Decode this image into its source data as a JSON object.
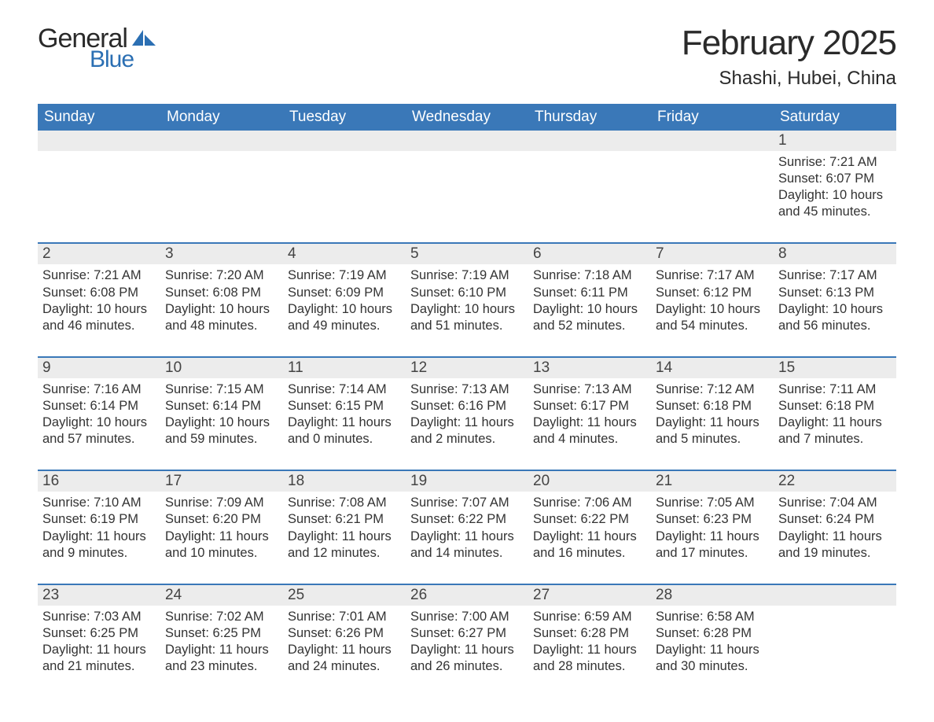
{
  "logo": {
    "text_general": "General",
    "text_blue": "Blue",
    "shape_color": "#2b6fb3"
  },
  "title": "February 2025",
  "location": "Shashi, Hubei, China",
  "colors": {
    "header_bg": "#3a78b8",
    "header_text": "#ffffff",
    "daynum_bg": "#ececec",
    "row_divider": "#3a78b8",
    "text": "#333333",
    "blue": "#2b6fb3"
  },
  "days_of_week": [
    "Sunday",
    "Monday",
    "Tuesday",
    "Wednesday",
    "Thursday",
    "Friday",
    "Saturday"
  ],
  "weeks": [
    [
      null,
      null,
      null,
      null,
      null,
      null,
      {
        "n": "1",
        "sunrise": "7:21 AM",
        "sunset": "6:07 PM",
        "dl": "10 hours and 45 minutes."
      }
    ],
    [
      {
        "n": "2",
        "sunrise": "7:21 AM",
        "sunset": "6:08 PM",
        "dl": "10 hours and 46 minutes."
      },
      {
        "n": "3",
        "sunrise": "7:20 AM",
        "sunset": "6:08 PM",
        "dl": "10 hours and 48 minutes."
      },
      {
        "n": "4",
        "sunrise": "7:19 AM",
        "sunset": "6:09 PM",
        "dl": "10 hours and 49 minutes."
      },
      {
        "n": "5",
        "sunrise": "7:19 AM",
        "sunset": "6:10 PM",
        "dl": "10 hours and 51 minutes."
      },
      {
        "n": "6",
        "sunrise": "7:18 AM",
        "sunset": "6:11 PM",
        "dl": "10 hours and 52 minutes."
      },
      {
        "n": "7",
        "sunrise": "7:17 AM",
        "sunset": "6:12 PM",
        "dl": "10 hours and 54 minutes."
      },
      {
        "n": "8",
        "sunrise": "7:17 AM",
        "sunset": "6:13 PM",
        "dl": "10 hours and 56 minutes."
      }
    ],
    [
      {
        "n": "9",
        "sunrise": "7:16 AM",
        "sunset": "6:14 PM",
        "dl": "10 hours and 57 minutes."
      },
      {
        "n": "10",
        "sunrise": "7:15 AM",
        "sunset": "6:14 PM",
        "dl": "10 hours and 59 minutes."
      },
      {
        "n": "11",
        "sunrise": "7:14 AM",
        "sunset": "6:15 PM",
        "dl": "11 hours and 0 minutes."
      },
      {
        "n": "12",
        "sunrise": "7:13 AM",
        "sunset": "6:16 PM",
        "dl": "11 hours and 2 minutes."
      },
      {
        "n": "13",
        "sunrise": "7:13 AM",
        "sunset": "6:17 PM",
        "dl": "11 hours and 4 minutes."
      },
      {
        "n": "14",
        "sunrise": "7:12 AM",
        "sunset": "6:18 PM",
        "dl": "11 hours and 5 minutes."
      },
      {
        "n": "15",
        "sunrise": "7:11 AM",
        "sunset": "6:18 PM",
        "dl": "11 hours and 7 minutes."
      }
    ],
    [
      {
        "n": "16",
        "sunrise": "7:10 AM",
        "sunset": "6:19 PM",
        "dl": "11 hours and 9 minutes."
      },
      {
        "n": "17",
        "sunrise": "7:09 AM",
        "sunset": "6:20 PM",
        "dl": "11 hours and 10 minutes."
      },
      {
        "n": "18",
        "sunrise": "7:08 AM",
        "sunset": "6:21 PM",
        "dl": "11 hours and 12 minutes."
      },
      {
        "n": "19",
        "sunrise": "7:07 AM",
        "sunset": "6:22 PM",
        "dl": "11 hours and 14 minutes."
      },
      {
        "n": "20",
        "sunrise": "7:06 AM",
        "sunset": "6:22 PM",
        "dl": "11 hours and 16 minutes."
      },
      {
        "n": "21",
        "sunrise": "7:05 AM",
        "sunset": "6:23 PM",
        "dl": "11 hours and 17 minutes."
      },
      {
        "n": "22",
        "sunrise": "7:04 AM",
        "sunset": "6:24 PM",
        "dl": "11 hours and 19 minutes."
      }
    ],
    [
      {
        "n": "23",
        "sunrise": "7:03 AM",
        "sunset": "6:25 PM",
        "dl": "11 hours and 21 minutes."
      },
      {
        "n": "24",
        "sunrise": "7:02 AM",
        "sunset": "6:25 PM",
        "dl": "11 hours and 23 minutes."
      },
      {
        "n": "25",
        "sunrise": "7:01 AM",
        "sunset": "6:26 PM",
        "dl": "11 hours and 24 minutes."
      },
      {
        "n": "26",
        "sunrise": "7:00 AM",
        "sunset": "6:27 PM",
        "dl": "11 hours and 26 minutes."
      },
      {
        "n": "27",
        "sunrise": "6:59 AM",
        "sunset": "6:28 PM",
        "dl": "11 hours and 28 minutes."
      },
      {
        "n": "28",
        "sunrise": "6:58 AM",
        "sunset": "6:28 PM",
        "dl": "11 hours and 30 minutes."
      },
      null
    ]
  ],
  "labels": {
    "sunrise": "Sunrise:",
    "sunset": "Sunset:",
    "daylight": "Daylight:"
  }
}
